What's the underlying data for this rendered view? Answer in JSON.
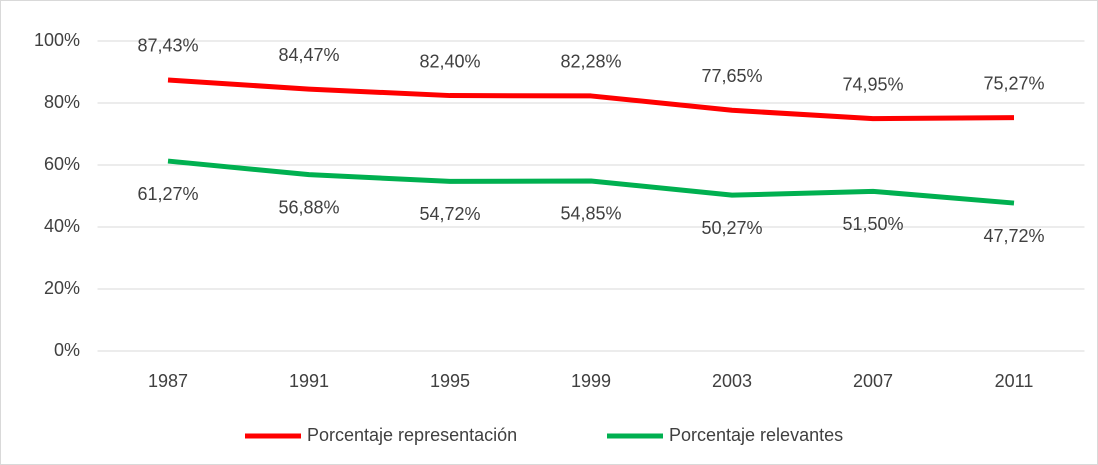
{
  "chart_data": {
    "type": "line",
    "categories": [
      "1987",
      "1991",
      "1995",
      "1999",
      "2003",
      "2007",
      "2011"
    ],
    "series": [
      {
        "name": "Porcentaje representación",
        "color": "#ff0000",
        "values": [
          87.43,
          84.47,
          82.4,
          82.28,
          77.65,
          74.95,
          75.27
        ],
        "value_labels": [
          "87,43%",
          "84,47%",
          "82,40%",
          "82,28%",
          "77,65%",
          "74,95%",
          "75,27%"
        ]
      },
      {
        "name": "Porcentaje relevantes",
        "color": "#00b050",
        "values": [
          61.27,
          56.88,
          54.72,
          54.85,
          50.27,
          51.5,
          47.72
        ],
        "value_labels": [
          "61,27%",
          "56,88%",
          "54,72%",
          "54,85%",
          "50,27%",
          "51,50%",
          "47,72%"
        ]
      }
    ],
    "ylim": [
      0,
      100
    ],
    "yticks": [
      {
        "value": 0,
        "label": "0%"
      },
      {
        "value": 20,
        "label": "20%"
      },
      {
        "value": 40,
        "label": "40%"
      },
      {
        "value": 60,
        "label": "60%"
      },
      {
        "value": 80,
        "label": "80%"
      },
      {
        "value": 100,
        "label": "100%"
      }
    ],
    "grid": true,
    "legend": "bottom"
  }
}
